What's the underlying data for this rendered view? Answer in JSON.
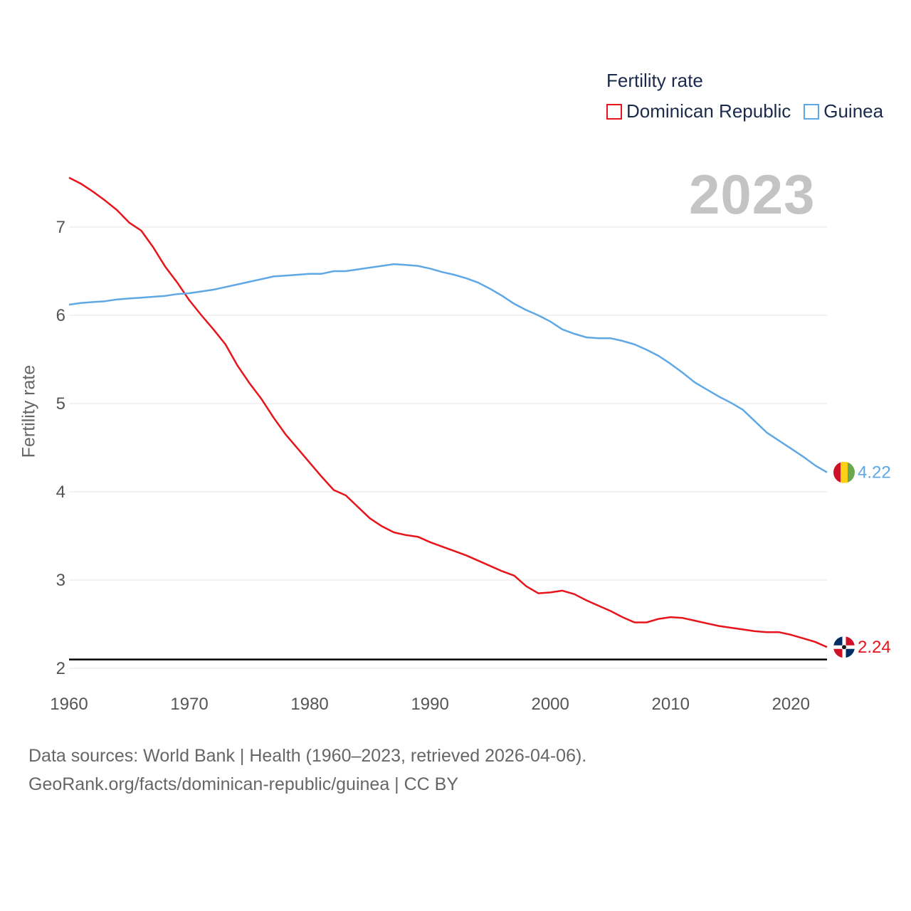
{
  "legend": {
    "title": "Fertility rate",
    "items": [
      {
        "name": "Dominican Republic",
        "color": "#e8141b"
      },
      {
        "name": "Guinea",
        "color": "#5fa8e6"
      }
    ]
  },
  "year_label": "2023",
  "footer": {
    "line1": "Data sources: World Bank | Health (1960–2023, retrieved 2026-04-06).",
    "line2": "GeoRank.org/facts/dominican-republic/guinea | CC BY"
  },
  "flags": {
    "guinea": [
      "#ce1126",
      "#fcd116",
      "#6aa84f"
    ],
    "dominican_republic": [
      "#002d62",
      "#ce1126",
      "#ffffff"
    ]
  },
  "chart_data": {
    "type": "line",
    "title": "Fertility rate",
    "xlabel": "",
    "ylabel": "Fertility rate",
    "xlim": [
      1960,
      2023
    ],
    "ylim": [
      2,
      7.6
    ],
    "x_ticks": [
      1960,
      1970,
      1980,
      1990,
      2000,
      2010,
      2020
    ],
    "y_ticks": [
      2,
      3,
      4,
      5,
      6,
      7
    ],
    "reference_line": 2.1,
    "grid": true,
    "legend_position": "top-right",
    "x": [
      1960,
      1961,
      1962,
      1963,
      1964,
      1965,
      1966,
      1967,
      1968,
      1969,
      1970,
      1971,
      1972,
      1973,
      1974,
      1975,
      1976,
      1977,
      1978,
      1979,
      1980,
      1981,
      1982,
      1983,
      1984,
      1985,
      1986,
      1987,
      1988,
      1989,
      1990,
      1991,
      1992,
      1993,
      1994,
      1995,
      1996,
      1997,
      1998,
      1999,
      2000,
      2001,
      2002,
      2003,
      2004,
      2005,
      2006,
      2007,
      2008,
      2009,
      2010,
      2011,
      2012,
      2013,
      2014,
      2015,
      2016,
      2017,
      2018,
      2019,
      2020,
      2021,
      2022,
      2023
    ],
    "series": [
      {
        "name": "Dominican Republic",
        "color": "#e8141b",
        "end_label": "2.24",
        "values": [
          7.56,
          7.49,
          7.4,
          7.3,
          7.19,
          7.05,
          6.96,
          6.77,
          6.55,
          6.37,
          6.17,
          6.0,
          5.84,
          5.67,
          5.43,
          5.23,
          5.05,
          4.84,
          4.65,
          4.49,
          4.33,
          4.17,
          4.02,
          3.96,
          3.83,
          3.7,
          3.61,
          3.54,
          3.51,
          3.49,
          3.43,
          3.38,
          3.33,
          3.28,
          3.22,
          3.16,
          3.1,
          3.05,
          2.93,
          2.85,
          2.86,
          2.88,
          2.84,
          2.77,
          2.71,
          2.65,
          2.58,
          2.52,
          2.52,
          2.56,
          2.58,
          2.57,
          2.54,
          2.51,
          2.48,
          2.46,
          2.44,
          2.42,
          2.41,
          2.41,
          2.38,
          2.34,
          2.3,
          2.24
        ]
      },
      {
        "name": "Guinea",
        "color": "#5fa8e6",
        "end_label": "4.22",
        "values": [
          6.12,
          6.14,
          6.15,
          6.16,
          6.18,
          6.19,
          6.2,
          6.21,
          6.22,
          6.24,
          6.25,
          6.27,
          6.29,
          6.32,
          6.35,
          6.38,
          6.41,
          6.44,
          6.45,
          6.46,
          6.47,
          6.47,
          6.5,
          6.5,
          6.52,
          6.54,
          6.56,
          6.58,
          6.57,
          6.56,
          6.53,
          6.49,
          6.46,
          6.42,
          6.37,
          6.3,
          6.22,
          6.13,
          6.06,
          6.0,
          5.93,
          5.84,
          5.79,
          5.75,
          5.74,
          5.74,
          5.71,
          5.67,
          5.61,
          5.54,
          5.45,
          5.35,
          5.24,
          5.16,
          5.08,
          5.01,
          4.93,
          4.8,
          4.67,
          4.58,
          4.49,
          4.4,
          4.3,
          4.22
        ]
      }
    ]
  }
}
